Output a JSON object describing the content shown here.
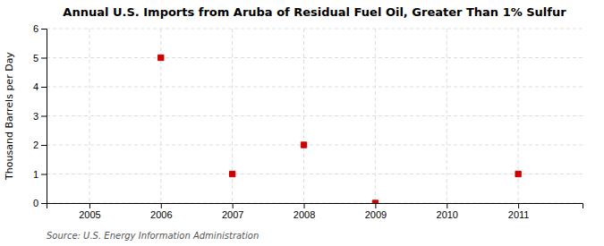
{
  "chart_data": {
    "type": "scatter",
    "title": "Annual U.S. Imports from Aruba of Residual Fuel Oil, Greater Than 1% Sulfur",
    "ylabel": "Thousand Barrels per Day",
    "source": "Source: U.S. Energy Information Administration",
    "x": [
      2006,
      2007,
      2008,
      2009,
      2011
    ],
    "values": [
      5,
      1,
      2,
      0,
      1
    ],
    "color": "#CC0000",
    "marker": "square",
    "xlim": [
      2004.4,
      2011.9
    ],
    "xticks": [
      2005,
      2006,
      2007,
      2008,
      2009,
      2010,
      2011
    ],
    "ylim": [
      0,
      6
    ],
    "yticks": [
      0,
      1,
      2,
      3,
      4,
      5,
      6
    ],
    "grid": true
  }
}
